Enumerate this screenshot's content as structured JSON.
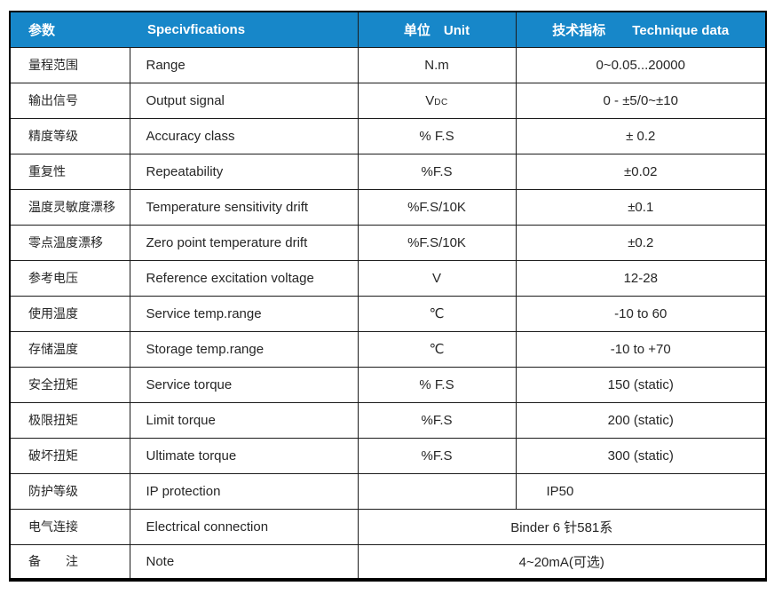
{
  "colors": {
    "header_bg": "#1787C9",
    "header_text": "#FFFFFF",
    "border": "#1B1B1B",
    "body_text": "#262626"
  },
  "table": {
    "headers": {
      "param": "参数",
      "spec": "Specivfications",
      "unit": "单位　Unit",
      "data": "技术指标　　Technique data"
    },
    "rows": [
      {
        "param": "量程范围",
        "spec": "Range",
        "unit": "N.m",
        "value": "0~0.05...20000"
      },
      {
        "param": "输出信号",
        "spec": "Output signal",
        "unit": "V",
        "unit_sub": "DC",
        "value": "0 - ±5/0~±10"
      },
      {
        "param": "精度等级",
        "spec": "Accuracy class",
        "unit": "% F.S",
        "value": "± 0.2"
      },
      {
        "param": "重复性",
        "spec": "Repeatability",
        "unit": "%F.S",
        "value": "±0.02"
      },
      {
        "param": "温度灵敏度漂移",
        "spec": "Temperature sensitivity drift",
        "unit": "%F.S/10K",
        "value": "±0.1"
      },
      {
        "param": "零点温度漂移",
        "spec": "Zero point temperature drift",
        "unit": "%F.S/10K",
        "value": "±0.2"
      },
      {
        "param": "参考电压",
        "spec": "Reference excitation voltage",
        "unit": "V",
        "value": "12-28"
      },
      {
        "param": "使用温度",
        "spec": "Service temp.range",
        "unit": "℃",
        "value": "-10 to 60"
      },
      {
        "param": "存储温度",
        "spec": "Storage temp.range",
        "unit": "℃",
        "value": "-10 to +70"
      },
      {
        "param": "安全扭矩",
        "spec": "Service torque",
        "unit": "% F.S",
        "value": "150 (static)"
      },
      {
        "param": "极限扭矩",
        "spec": "Limit torque",
        "unit": "%F.S",
        "value": "200 (static)"
      },
      {
        "param": "破坏扭矩",
        "spec": "Ultimate torque",
        "unit": "%F.S",
        "value": "300 (static)"
      },
      {
        "param": "防护等级",
        "spec": "IP protection",
        "unit": "",
        "value": "IP50",
        "value_align": "left"
      },
      {
        "param": "电气连接",
        "spec": "Electrical connection",
        "merged_value": "Binder 6 针581系"
      },
      {
        "param": "备　　注",
        "spec": "Note",
        "merged_value": "4~20mA(可选)"
      }
    ]
  }
}
